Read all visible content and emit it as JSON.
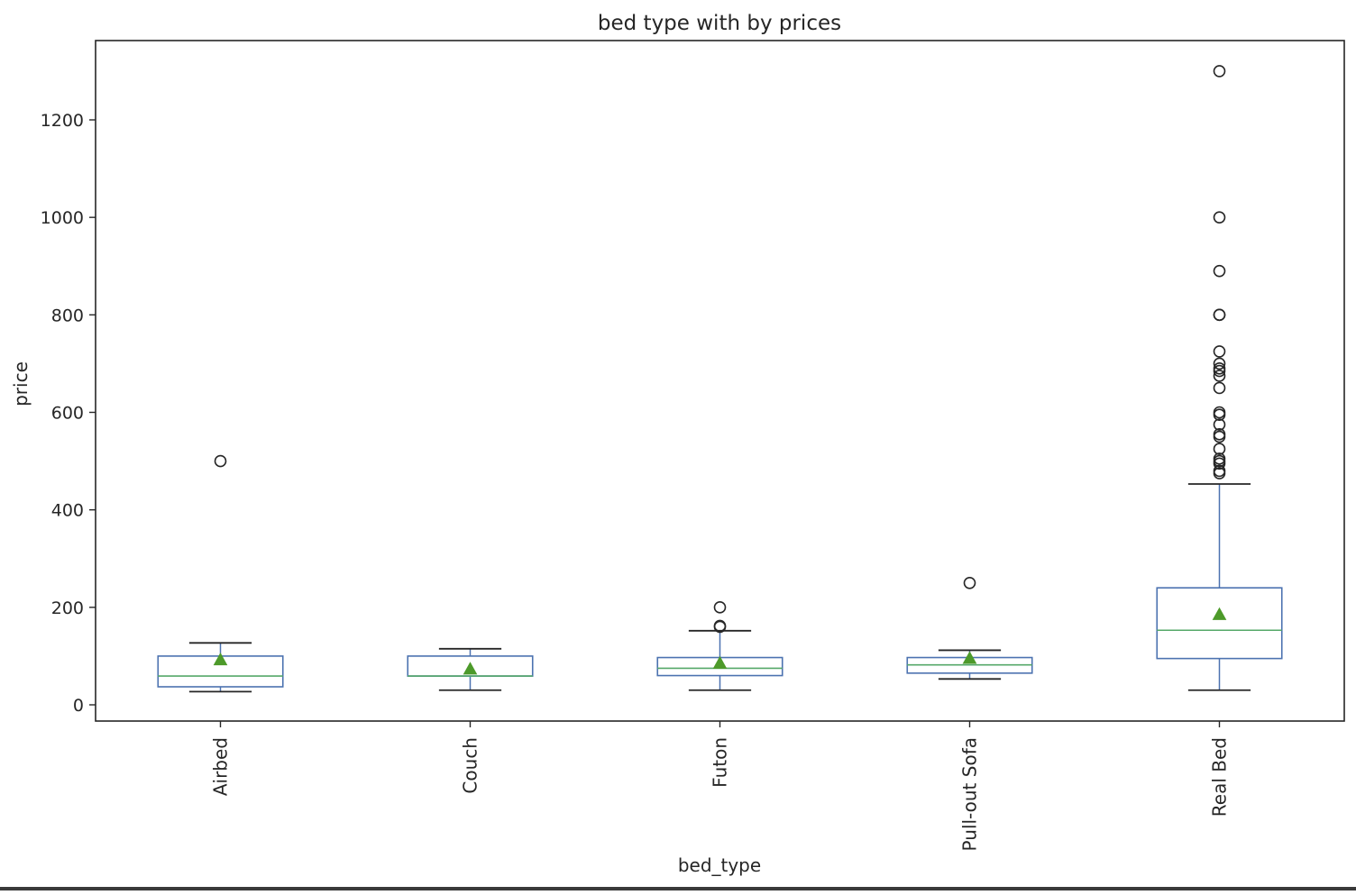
{
  "chart_data": {
    "type": "box",
    "title": "bed type with by prices",
    "xlabel": "bed_type",
    "ylabel": "price",
    "ylim": [
      -35,
      1330
    ],
    "yticks": [
      0,
      200,
      400,
      600,
      800,
      1000,
      1200
    ],
    "grid": false,
    "legend": "none",
    "show_means": true,
    "colors": {
      "box": "#4c72b0",
      "median": "#55a868",
      "mean_marker": "#4d9a2a",
      "whisker_cap": "#262626",
      "outlier": "#262626",
      "axes": "#262626"
    },
    "categories": [
      "Airbed",
      "Couch",
      "Futon",
      "Pull-out Sofa",
      "Real Bed"
    ],
    "boxes": [
      {
        "category": "Airbed",
        "whisker_low": 27,
        "q1": 37,
        "median": 59,
        "q3": 100,
        "whisker_high": 127,
        "mean": 93,
        "outliers": [
          500
        ]
      },
      {
        "category": "Couch",
        "whisker_low": 30,
        "q1": 59,
        "median": 59,
        "q3": 100,
        "whisker_high": 115,
        "mean": 74,
        "outliers": []
      },
      {
        "category": "Futon",
        "whisker_low": 30,
        "q1": 60,
        "median": 75,
        "q3": 97,
        "whisker_high": 152,
        "mean": 86,
        "outliers": [
          160,
          162,
          200
        ]
      },
      {
        "category": "Pull-out Sofa",
        "whisker_low": 53,
        "q1": 65,
        "median": 82,
        "q3": 97,
        "whisker_high": 112,
        "mean": 96,
        "outliers": [
          250
        ]
      },
      {
        "category": "Real Bed",
        "whisker_low": 30,
        "q1": 95,
        "median": 153,
        "q3": 240,
        "whisker_high": 453,
        "mean": 186,
        "outliers": [
          475,
          480,
          495,
          500,
          505,
          525,
          550,
          555,
          575,
          595,
          600,
          650,
          675,
          685,
          690,
          700,
          725,
          800,
          800,
          890,
          1000,
          1300
        ]
      }
    ]
  }
}
